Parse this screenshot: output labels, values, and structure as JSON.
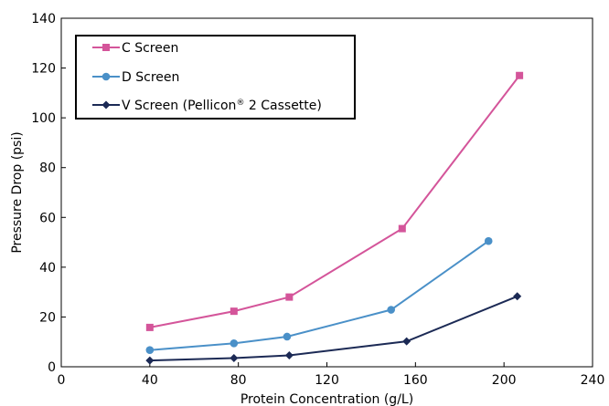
{
  "chart_data": {
    "type": "line",
    "title": "",
    "xlabel": "Protein Concentration (g/L)",
    "ylabel": "Pressure Drop (psi)",
    "xlim": [
      0,
      240
    ],
    "ylim": [
      0,
      140
    ],
    "xticks": [
      0,
      40,
      80,
      120,
      160,
      200,
      240
    ],
    "yticks": [
      0,
      20,
      40,
      60,
      80,
      100,
      120,
      140
    ],
    "grid": false,
    "legend_position": "top-left",
    "series": [
      {
        "name": "C Screen",
        "color": "#d4559a",
        "marker": "square",
        "x": [
          40,
          78,
          103,
          154,
          207
        ],
        "y": [
          15.8,
          22.3,
          28.0,
          55.5,
          117.0
        ]
      },
      {
        "name": "D Screen",
        "color": "#4a90c8",
        "marker": "circle",
        "x": [
          40,
          78,
          102,
          149,
          193
        ],
        "y": [
          6.7,
          9.4,
          12.1,
          22.9,
          50.5
        ]
      },
      {
        "name": "V Screen (Pellicon® 2 Cassette)",
        "label_main": "V Screen (Pellicon",
        "label_sup": "®",
        "label_tail": " 2 Cassette)",
        "color": "#1c2a55",
        "marker": "diamond",
        "x": [
          40,
          78,
          103,
          156,
          206
        ],
        "y": [
          2.5,
          3.5,
          4.6,
          10.2,
          28.3
        ]
      }
    ]
  }
}
